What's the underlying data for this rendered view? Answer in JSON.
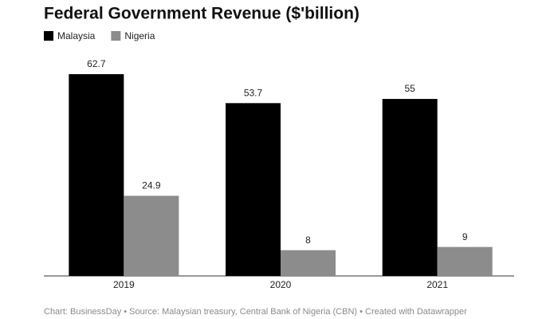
{
  "chart_data": {
    "type": "bar",
    "title": "Federal Government Revenue ($'billion)",
    "categories": [
      "2019",
      "2020",
      "2021"
    ],
    "series": [
      {
        "name": "Malaysia",
        "color": "#000000",
        "values": [
          62.7,
          53.7,
          55
        ]
      },
      {
        "name": "Nigeria",
        "color": "#8c8c8c",
        "values": [
          24.9,
          8,
          9
        ]
      }
    ],
    "source": "Chart: BusinessDay • Source: Malaysian treasury, Central Bank of Nigeria (CBN) • Created with Datawrapper"
  }
}
